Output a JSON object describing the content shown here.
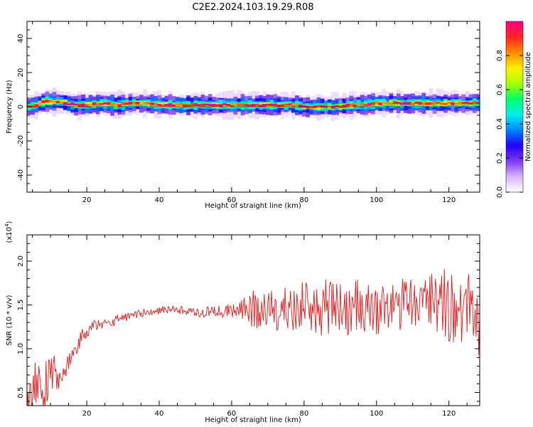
{
  "title": "C2E2.2024.103.19.29.R08",
  "colorbar": {
    "label": "Normalized spectral amplitude",
    "ticks": [
      "0.0",
      "0.2",
      "0.4",
      "0.6",
      "0.8"
    ],
    "tick_values": [
      0.0,
      0.2,
      0.4,
      0.6,
      0.8
    ],
    "range": [
      0,
      1
    ],
    "colors": [
      "#ffffff",
      "#d8b4fe",
      "#7c3aed",
      "#2200ff",
      "#0088ff",
      "#00eeee",
      "#00ff66",
      "#aaff00",
      "#ffee00",
      "#ff8800",
      "#ff2222",
      "#ff0088"
    ]
  },
  "chart_data": [
    {
      "type": "heatmap",
      "title": "C2E2.2024.103.19.29.R08",
      "xlabel": "Height of straight line (km)",
      "ylabel": "Frequency (Hz)",
      "xlim": [
        3.5,
        128.5
      ],
      "ylim": [
        -50,
        50
      ],
      "xticks": [
        20,
        40,
        60,
        80,
        100,
        120
      ],
      "yticks": [
        -40,
        -20,
        0,
        20,
        40
      ],
      "band_center_hz": [
        0,
        3,
        3,
        1,
        1,
        2,
        1,
        2,
        2,
        1,
        1,
        1,
        1,
        1,
        1,
        1,
        1,
        1,
        1,
        0,
        0,
        0,
        1,
        1,
        2,
        2,
        2,
        2,
        2,
        2
      ],
      "band_x_km": [
        4,
        8,
        12,
        16,
        20,
        24,
        28,
        32,
        36,
        40,
        44,
        48,
        52,
        56,
        60,
        64,
        68,
        72,
        76,
        80,
        84,
        88,
        92,
        96,
        100,
        104,
        108,
        112,
        116,
        120
      ],
      "peak_amplitude": 1.0
    },
    {
      "type": "line",
      "xlabel": "Height of straight line (km)",
      "ylabel": "SNR (10 * v/v)",
      "y_multiplier": "(x10",
      "y_multiplier_exp": "4",
      "xlim": [
        3.5,
        128.5
      ],
      "ylim": [
        0.35,
        2.3
      ],
      "xticks": [
        20,
        40,
        60,
        80,
        100,
        120
      ],
      "yticks": [
        0.5,
        1.0,
        1.5,
        2.0
      ],
      "yticklabels": [
        "0.5",
        "1.0",
        "1.5",
        "2.0"
      ],
      "color": "#e31a1c",
      "x": [
        4,
        6,
        8,
        10,
        12,
        14,
        16,
        18,
        20,
        22,
        24,
        26,
        28,
        30,
        32,
        34,
        36,
        38,
        40,
        42,
        44,
        46,
        48,
        50,
        52,
        54,
        56,
        58,
        60,
        62,
        64,
        66,
        68,
        70,
        72,
        74,
        76,
        78,
        80,
        82,
        84,
        86,
        88,
        90,
        92,
        94,
        96,
        98,
        100,
        102,
        104,
        106,
        108,
        110,
        112,
        114,
        116,
        118,
        120,
        122,
        124,
        126,
        128
      ],
      "y": [
        0.48,
        0.62,
        0.55,
        0.8,
        0.7,
        0.78,
        0.92,
        1.1,
        1.2,
        1.26,
        1.28,
        1.3,
        1.32,
        1.35,
        1.38,
        1.4,
        1.42,
        1.43,
        1.44,
        1.45,
        1.45,
        1.44,
        1.42,
        1.41,
        1.42,
        1.43,
        1.42,
        1.41,
        1.43,
        1.44,
        1.4,
        1.45,
        1.38,
        1.46,
        1.42,
        1.48,
        1.4,
        1.5,
        1.45,
        1.48,
        1.42,
        1.55,
        1.44,
        1.5,
        1.43,
        1.52,
        1.46,
        1.5,
        1.42,
        1.55,
        1.48,
        1.52,
        1.45,
        1.55,
        1.5,
        1.6,
        1.48,
        1.62,
        1.45,
        1.55,
        1.5,
        1.6,
        1.3
      ],
      "amplitude": [
        0.25,
        0.3,
        0.35,
        0.28,
        0.2,
        0.15,
        0.1,
        0.1,
        0.08,
        0.07,
        0.07,
        0.06,
        0.06,
        0.06,
        0.05,
        0.05,
        0.05,
        0.05,
        0.05,
        0.05,
        0.05,
        0.05,
        0.05,
        0.05,
        0.06,
        0.07,
        0.08,
        0.08,
        0.1,
        0.14,
        0.2,
        0.22,
        0.22,
        0.24,
        0.26,
        0.28,
        0.3,
        0.3,
        0.32,
        0.32,
        0.33,
        0.34,
        0.34,
        0.32,
        0.3,
        0.3,
        0.3,
        0.3,
        0.3,
        0.3,
        0.3,
        0.32,
        0.34,
        0.32,
        0.32,
        0.34,
        0.35,
        0.4,
        0.42,
        0.5,
        0.55,
        0.5,
        0.4
      ]
    }
  ]
}
